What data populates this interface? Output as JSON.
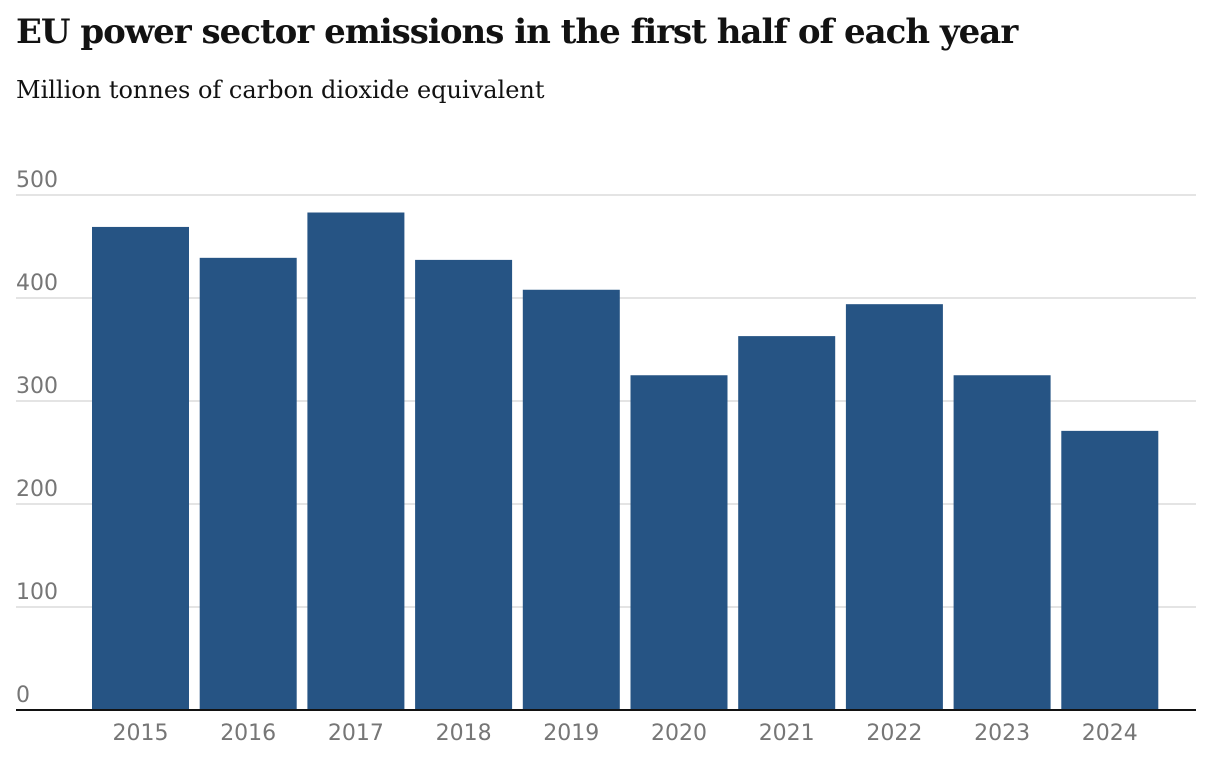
{
  "title": "EU power sector emissions in the first half of each year",
  "subtitle": "Million tonnes of carbon dioxide equivalent",
  "colors": {
    "bar": "#265484",
    "grid": "#dcdcdc",
    "axis": "#121212",
    "tick": "#767676"
  },
  "chart_data": {
    "type": "bar",
    "title": "EU power sector emissions in the first half of each year",
    "subtitle": "Million tonnes of carbon dioxide equivalent",
    "categories": [
      "2015",
      "2016",
      "2017",
      "2018",
      "2019",
      "2020",
      "2021",
      "2022",
      "2023",
      "2024"
    ],
    "values": [
      469,
      439,
      483,
      437,
      408,
      325,
      363,
      394,
      325,
      271
    ],
    "yticks": [
      0,
      100,
      200,
      300,
      400,
      500
    ],
    "ylim": [
      0,
      500
    ],
    "grid": true,
    "xlabel": "",
    "ylabel": ""
  }
}
